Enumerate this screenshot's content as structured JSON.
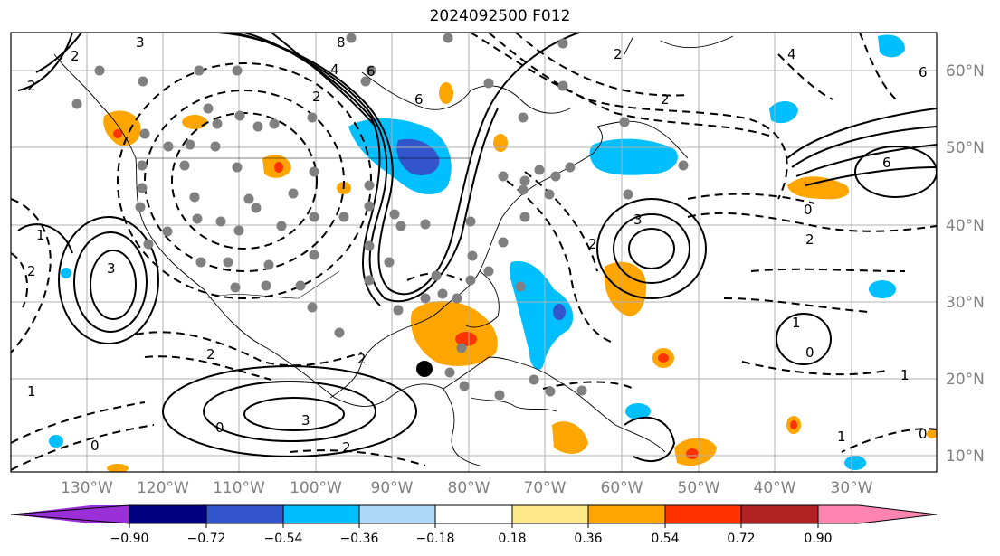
{
  "title": "2024092500 F012",
  "longitude_labels": [
    "130°W",
    "120°W",
    "110°W",
    "100°W",
    "90°W",
    "80°W",
    "70°W",
    "60°W",
    "50°W",
    "40°W",
    "30°W"
  ],
  "latitude_labels": [
    "60°N",
    "50°N",
    "40°N",
    "30°N",
    "20°N",
    "10°N"
  ],
  "colorbar": {
    "tick_labels": [
      "−0.90",
      "−0.72",
      "−0.54",
      "−0.36",
      "−0.18",
      "0.18",
      "0.36",
      "0.54",
      "0.72",
      "0.90"
    ],
    "colors": [
      "#9b30d9",
      "#000080",
      "#3355cc",
      "#00bfff",
      "#add8f6",
      "#ffffff",
      "#fde98a",
      "#ffa500",
      "#ff3300",
      "#b22222",
      "#ff85b0"
    ]
  },
  "contour_labels": [
    "3",
    "2",
    "8",
    "6",
    "4",
    "2",
    "6",
    "2",
    "2",
    "4",
    "6",
    "2",
    "6",
    "2",
    "0",
    "1",
    "3",
    "2",
    "3",
    "2",
    "1",
    "0",
    "2",
    "2",
    "3",
    "1",
    "0",
    "2",
    "0",
    "1",
    "0",
    "1"
  ],
  "map_colors": {
    "warm_fill": "#ffa500",
    "warm_core": "#ff3300",
    "cool_fill": "#00bfff",
    "cool_core": "#3355cc",
    "stations": "#808080",
    "grid": "#b0b0b0"
  }
}
